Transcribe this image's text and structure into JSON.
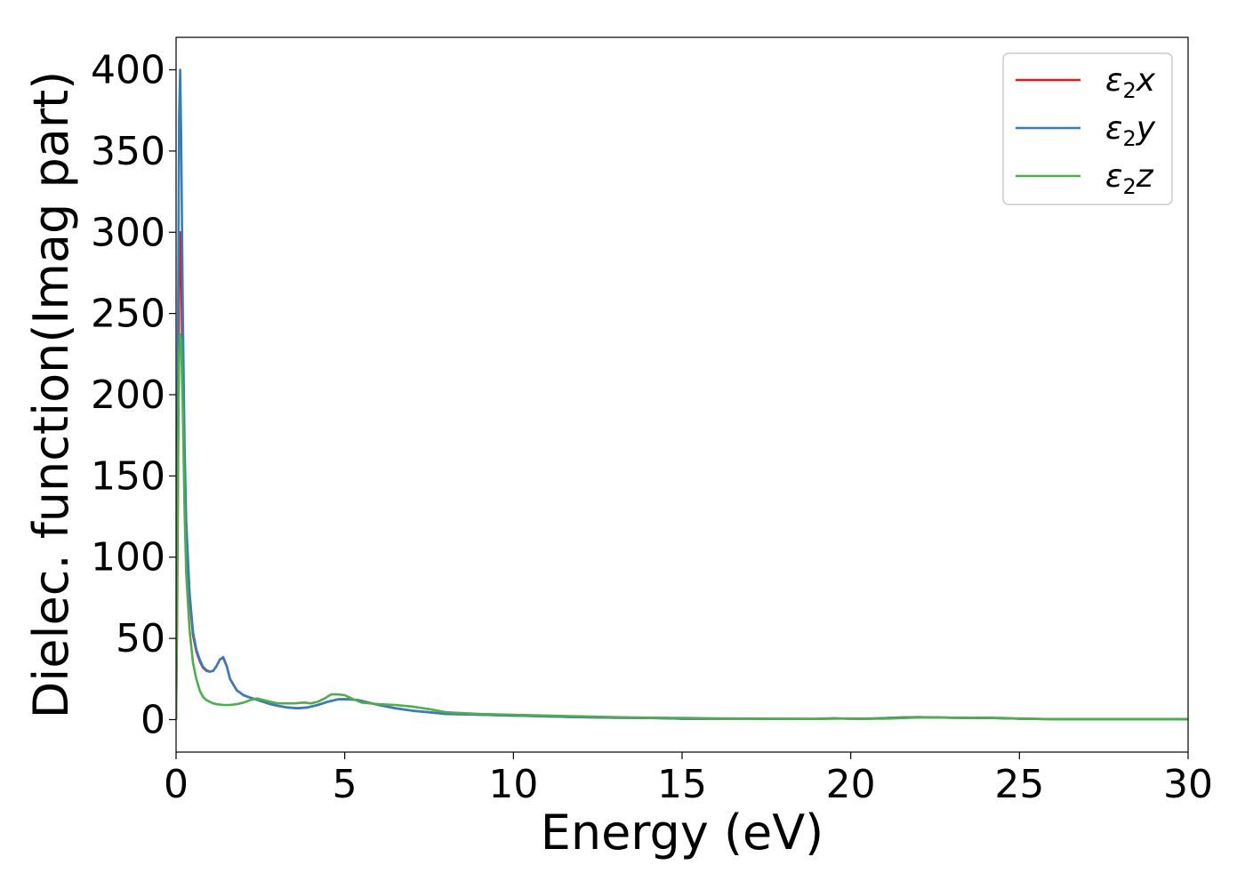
{
  "chart_data": {
    "type": "line",
    "xlabel": "Energy (eV)",
    "ylabel": "Dielec. function(Imag part)",
    "xlim": [
      0,
      30
    ],
    "ylim": [
      -20,
      420
    ],
    "xticks": [
      0,
      5,
      10,
      15,
      20,
      25,
      30
    ],
    "yticks": [
      0,
      50,
      100,
      150,
      200,
      250,
      300,
      350,
      400
    ],
    "grid": false,
    "legend_position": "top-right",
    "series": [
      {
        "name": "ε2x",
        "legend": {
          "base": "ε",
          "sub": "2",
          "suffix": "x"
        },
        "color": "#e41a1c",
        "x": [
          0,
          0.03,
          0.06,
          0.09,
          0.12,
          0.15,
          0.2,
          0.25,
          0.3,
          0.4,
          0.5,
          0.6,
          0.7,
          0.8,
          0.9,
          1.0,
          1.1,
          1.2,
          1.3,
          1.4,
          1.5,
          1.6,
          1.8,
          2.0,
          2.2,
          2.5,
          2.8,
          3.0,
          3.3,
          3.6,
          3.9,
          4.2,
          4.5,
          4.8,
          5.1,
          5.4,
          5.7,
          6.0,
          6.5,
          7.0,
          7.5,
          8.0,
          9.0,
          10.0,
          10.5,
          11.0,
          12.0,
          13.0,
          14.0,
          15.0,
          16.0,
          17.0,
          18.0,
          19.0,
          19.5,
          20.0,
          20.5,
          21.0,
          21.5,
          22.0,
          22.5,
          23.0,
          23.5,
          24.0,
          24.5,
          25.0,
          25.5,
          26.0,
          27.0,
          28.0,
          29.0,
          30.0
        ],
        "values": [
          0,
          60,
          160,
          270,
          300,
          280,
          200,
          150,
          115,
          75,
          52,
          42,
          36,
          32,
          30,
          29.5,
          30,
          33,
          37,
          38,
          33,
          25,
          18,
          15,
          13.5,
          11.5,
          9.5,
          8.5,
          7.5,
          7,
          7.5,
          9,
          11,
          12.5,
          12.5,
          12,
          10.5,
          9,
          7,
          5.5,
          4.5,
          3.5,
          3,
          2.5,
          2.3,
          2,
          1.5,
          1.2,
          1,
          0.6,
          0.5,
          0.5,
          0.4,
          0.4,
          0.8,
          0.5,
          0.6,
          0.9,
          1.3,
          1.5,
          1.3,
          1.2,
          1.0,
          1.1,
          0.8,
          0.6,
          0.4,
          0.3,
          0.3,
          0.3,
          0.3,
          0.3
        ]
      },
      {
        "name": "ε2y",
        "legend": {
          "base": "ε",
          "sub": "2",
          "suffix": "y"
        },
        "color": "#377eb8",
        "x": [
          0,
          0.03,
          0.06,
          0.09,
          0.12,
          0.15,
          0.2,
          0.25,
          0.3,
          0.4,
          0.5,
          0.6,
          0.7,
          0.8,
          0.9,
          1.0,
          1.1,
          1.2,
          1.3,
          1.4,
          1.5,
          1.6,
          1.8,
          2.0,
          2.2,
          2.5,
          2.8,
          3.0,
          3.3,
          3.6,
          3.9,
          4.2,
          4.5,
          4.8,
          5.1,
          5.4,
          5.7,
          6.0,
          6.5,
          7.0,
          7.5,
          8.0,
          9.0,
          10.0,
          10.5,
          11.0,
          12.0,
          13.0,
          14.0,
          15.0,
          16.0,
          17.0,
          18.0,
          19.0,
          19.5,
          20.0,
          20.5,
          21.0,
          21.5,
          22.0,
          22.5,
          23.0,
          23.5,
          24.0,
          24.5,
          25.0,
          25.5,
          26.0,
          27.0,
          28.0,
          29.0,
          30.0
        ],
        "values": [
          0,
          90,
          250,
          370,
          400,
          360,
          250,
          170,
          122,
          78,
          54,
          43,
          37,
          32.5,
          30.5,
          29.5,
          30,
          33,
          37,
          38.5,
          33,
          25,
          18,
          15,
          13.5,
          11.5,
          9.5,
          8.5,
          7.5,
          7,
          7.5,
          9,
          11,
          12.5,
          12.5,
          12,
          10.5,
          9,
          7,
          5.5,
          4.5,
          3.5,
          3,
          2.5,
          2.3,
          2,
          1.5,
          1.2,
          1,
          0.6,
          0.5,
          0.5,
          0.4,
          0.4,
          0.8,
          0.5,
          0.6,
          0.9,
          1.3,
          1.5,
          1.3,
          1.2,
          1.0,
          1.1,
          0.8,
          0.6,
          0.4,
          0.3,
          0.3,
          0.3,
          0.3,
          0.3
        ]
      },
      {
        "name": "ε2z",
        "legend": {
          "base": "ε",
          "sub": "2",
          "suffix": "z"
        },
        "color": "#4daf4a",
        "x": [
          0,
          0.03,
          0.06,
          0.09,
          0.12,
          0.15,
          0.2,
          0.25,
          0.3,
          0.4,
          0.5,
          0.6,
          0.7,
          0.8,
          0.9,
          1.0,
          1.1,
          1.2,
          1.4,
          1.6,
          1.8,
          2.0,
          2.2,
          2.4,
          2.6,
          2.8,
          3.0,
          3.2,
          3.5,
          3.8,
          4.0,
          4.2,
          4.4,
          4.6,
          4.8,
          5.0,
          5.2,
          5.5,
          6.0,
          6.5,
          7.0,
          7.5,
          8.0,
          9.0,
          10.0,
          11.0,
          12.0,
          13.0,
          14.0,
          15.0,
          16.0,
          17.0,
          18.0,
          19.0,
          19.5,
          20.0,
          20.5,
          21.0,
          21.5,
          22.0,
          22.5,
          23.0,
          23.5,
          24.0,
          24.5,
          25.0,
          25.5,
          26.0,
          27.0,
          28.0,
          29.0,
          30.0
        ],
        "values": [
          0,
          80,
          170,
          225,
          237,
          233,
          190,
          130,
          90,
          55,
          35,
          25,
          18,
          14,
          12,
          11,
          10,
          9.5,
          9,
          9,
          9.5,
          10.5,
          12,
          13,
          12,
          11,
          10,
          10,
          10,
          10.5,
          10,
          11,
          13,
          15.5,
          15.5,
          15,
          13,
          10.5,
          9.5,
          9,
          8,
          6.5,
          4.5,
          3.5,
          3,
          2.5,
          2,
          1.5,
          1.2,
          1,
          0.8,
          0.6,
          0.5,
          0.4,
          0.6,
          0.7,
          0.5,
          0.6,
          0.9,
          1.3,
          1.4,
          1.2,
          1.0,
          1.1,
          1.0,
          0.6,
          0.4,
          0.3,
          0.3,
          0.3,
          0.3,
          0.3
        ]
      }
    ]
  }
}
